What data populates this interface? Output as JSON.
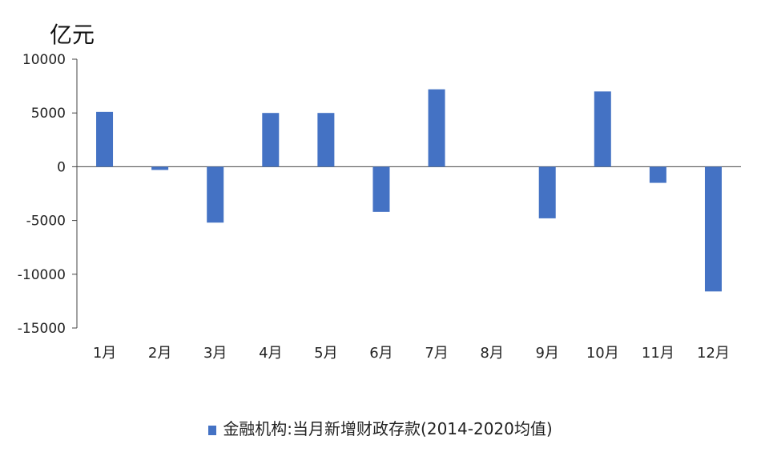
{
  "unit_label": "亿元",
  "legend_label": "金融机构:当月新增财政存款(2014-2020均值)",
  "bar_color": "#4472C4",
  "chart_data": {
    "type": "bar",
    "categories": [
      "1月",
      "2月",
      "3月",
      "4月",
      "5月",
      "6月",
      "7月",
      "8月",
      "9月",
      "10月",
      "11月",
      "12月"
    ],
    "series": [
      {
        "name": "金融机构:当月新增财政存款(2014-2020均值)",
        "values": [
          5100,
          -300,
          -5200,
          5000,
          5000,
          -4200,
          7200,
          0,
          -4800,
          7000,
          -1500,
          -11600
        ]
      }
    ],
    "ylabel": "亿元",
    "ylim": [
      -15000,
      10000
    ],
    "yticks": [
      10000,
      5000,
      0,
      -5000,
      -10000,
      -15000
    ],
    "grid": false,
    "legend_position": "bottom"
  }
}
